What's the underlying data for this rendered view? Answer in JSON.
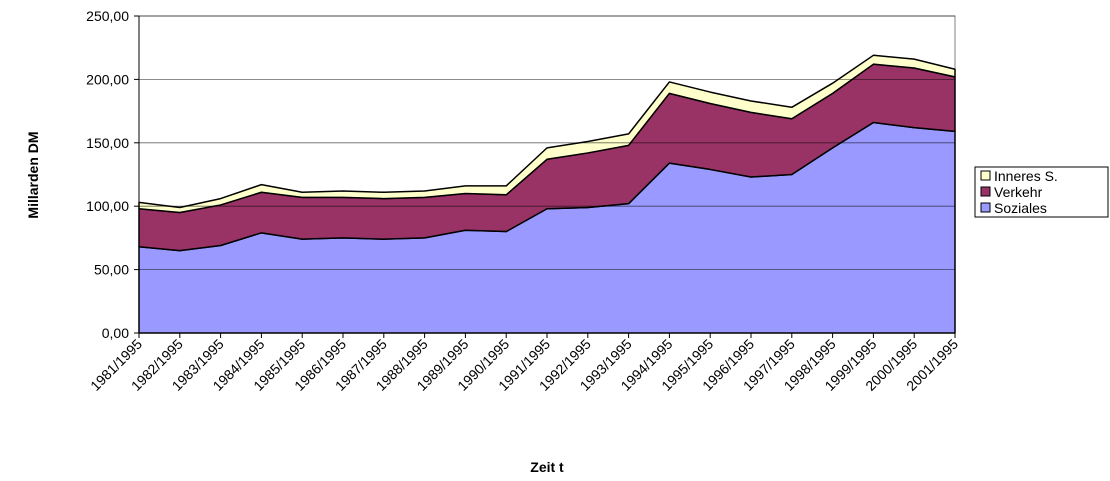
{
  "chart_data": {
    "type": "stacked_area",
    "y_label": "Millarden DM",
    "x_label": "Zeit t",
    "categories": [
      "1981/1995",
      "1982/1995",
      "1983/1995",
      "1984/1995",
      "1985/1995",
      "1986/1995",
      "1987/1995",
      "1988/1995",
      "1989/1995",
      "1990/1995",
      "1991/1995",
      "1992/1995",
      "1993/1995",
      "1994/1995",
      "1995/1995",
      "1996/1995",
      "1997/1995",
      "1998/1995",
      "1999/1995",
      "2000/1995",
      "2001/1995"
    ],
    "series": [
      {
        "name": "Soziales",
        "color": "#9999ff",
        "values": [
          68,
          65,
          69,
          79,
          74,
          75,
          74,
          75,
          81,
          80,
          98,
          99,
          102,
          134,
          129,
          123,
          125,
          146,
          166,
          162,
          159
        ]
      },
      {
        "name": "Verkehr",
        "color": "#993366",
        "values": [
          30,
          30,
          32,
          32,
          33,
          32,
          32,
          32,
          29,
          29,
          39,
          43,
          46,
          55,
          52,
          51,
          44,
          43,
          46,
          47,
          43
        ]
      },
      {
        "name": "Inneres S.",
        "color": "#ffffcc",
        "values": [
          5,
          4,
          5,
          6,
          4,
          5,
          5,
          5,
          6,
          7,
          9,
          9,
          9,
          9,
          9,
          9,
          9,
          8,
          7,
          7,
          6
        ]
      }
    ],
    "ylim": [
      0,
      250
    ],
    "yticks": [
      {
        "value": 0,
        "label": "0,00"
      },
      {
        "value": 50,
        "label": "50,00"
      },
      {
        "value": 100,
        "label": "100,00"
      },
      {
        "value": 150,
        "label": "150,00"
      },
      {
        "value": 200,
        "label": "200,00"
      },
      {
        "value": 250,
        "label": "250,00"
      }
    ],
    "grid": true,
    "legend": "right"
  }
}
